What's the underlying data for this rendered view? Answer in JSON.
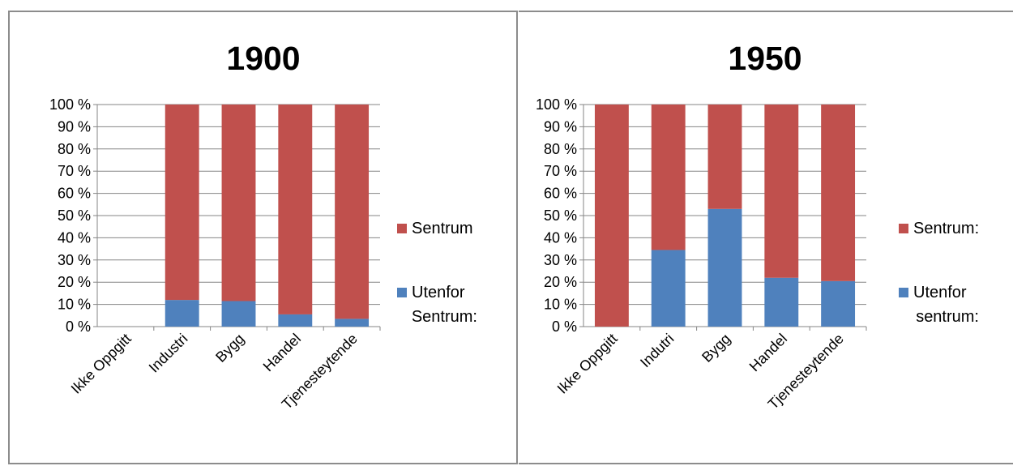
{
  "chart_data": [
    {
      "type": "bar",
      "stacked": "percent",
      "title": "1900",
      "categories": [
        "Ikke Oppgitt",
        "Industri",
        "Bygg",
        "Handel",
        "Tjenesteytende"
      ],
      "ylim": [
        0,
        100
      ],
      "yticks": [
        "0 %",
        "10 %",
        "20 %",
        "30 %",
        "40 %",
        "50 %",
        "60 %",
        "70 %",
        "80 %",
        "90 %",
        "100 %"
      ],
      "grid": true,
      "legend_position": "right",
      "series": [
        {
          "name": "Utenfor Sentrum:",
          "color": "#4f81bd",
          "values": [
            0,
            12,
            11.5,
            5.5,
            3.5
          ]
        },
        {
          "name": "Sentrum",
          "color": "#c0504d",
          "values": [
            0,
            88,
            88.5,
            94.5,
            96.5
          ]
        }
      ]
    },
    {
      "type": "bar",
      "stacked": "percent",
      "title": "1950",
      "categories": [
        "Ikke Oppgitt",
        "Indutri",
        "Bygg",
        "Handel",
        "Tjenesteytende"
      ],
      "ylim": [
        0,
        100
      ],
      "yticks": [
        "0 %",
        "10 %",
        "20 %",
        "30 %",
        "40 %",
        "50 %",
        "60 %",
        "70 %",
        "80 %",
        "90 %",
        "100 %"
      ],
      "grid": true,
      "legend_position": "right",
      "series": [
        {
          "name": "Utenfor sentrum:",
          "color": "#4f81bd",
          "values": [
            0,
            34.5,
            53,
            22,
            20.5
          ]
        },
        {
          "name": "Sentrum:",
          "color": "#c0504d",
          "values": [
            100,
            65.5,
            47,
            78,
            79.5
          ]
        }
      ]
    }
  ]
}
